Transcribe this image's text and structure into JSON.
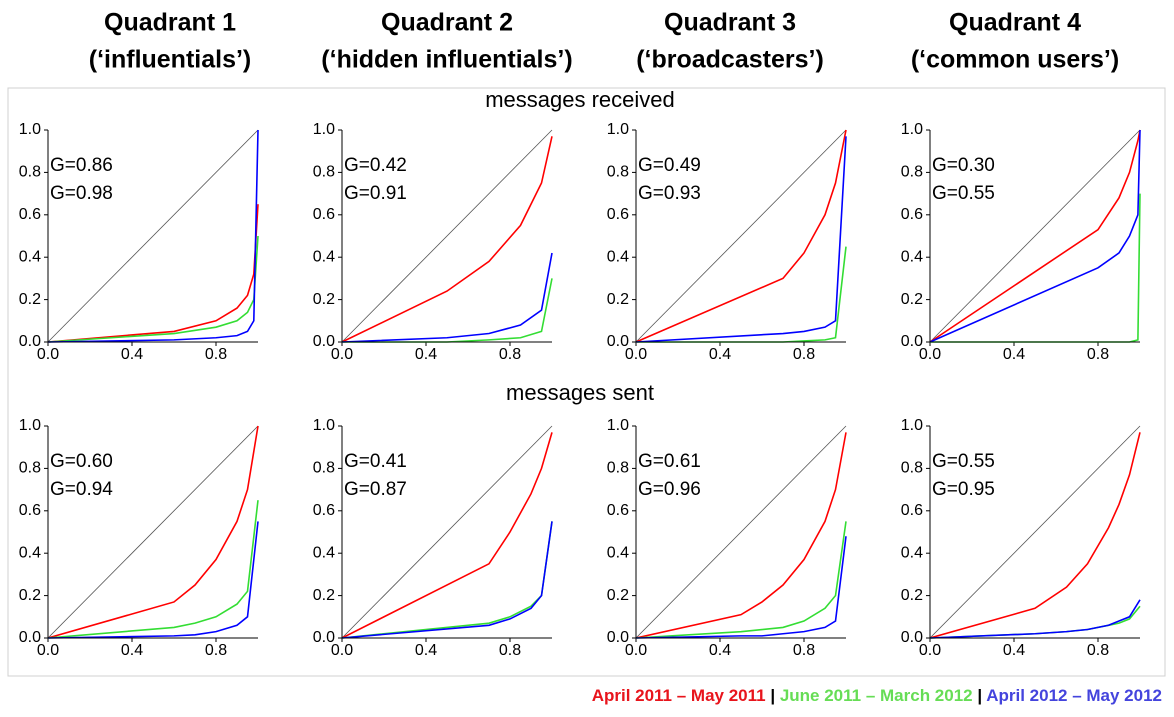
{
  "columns": [
    {
      "title": "Quadrant 1",
      "subtitle": "(‘influentials’)"
    },
    {
      "title": "Quadrant 2",
      "subtitle": "(‘hidden influentials’)"
    },
    {
      "title": "Quadrant 3",
      "subtitle": "(‘broadcasters’)"
    },
    {
      "title": "Quadrant 4",
      "subtitle": "(‘common users’)"
    }
  ],
  "rows": [
    "messages received",
    "messages sent"
  ],
  "legend": [
    {
      "name": "April 2011 – May 2011",
      "color": "#e8141c"
    },
    {
      "name": "June 2011 – March 2012",
      "color": "#66dd55"
    },
    {
      "name": "April 2012 – May 2012",
      "color": "#4444dd"
    }
  ],
  "legend_separator": "|",
  "chart_data": [
    {
      "type": "line",
      "x": [
        0,
        0.6,
        0.8,
        0.9,
        0.95,
        0.98,
        1
      ],
      "series": [
        {
          "color": "#ff0000",
          "values": [
            0,
            0.05,
            0.1,
            0.16,
            0.22,
            0.32,
            0.65
          ]
        },
        {
          "color": "#33dd33",
          "values": [
            0,
            0.04,
            0.07,
            0.1,
            0.14,
            0.2,
            0.5
          ]
        },
        {
          "color": "#0000ff",
          "values": [
            0,
            0.01,
            0.02,
            0.03,
            0.05,
            0.1,
            1
          ]
        }
      ],
      "annotations": [
        {
          "text": "G=0.86",
          "color": "#ff0000"
        },
        {
          "text": "G=0.98",
          "color": "#0000ff"
        }
      ],
      "xlim": [
        0,
        1
      ],
      "ylim": [
        0,
        1
      ],
      "xticks": [
        {
          "value": 0,
          "label": "0.0"
        },
        0.4,
        0.8
      ],
      "yticks": [
        {
          "value": 0,
          "label": "0.0"
        },
        0.2,
        0.4,
        0.6,
        0.8,
        {
          "value": 1,
          "label": "1.0"
        }
      ]
    },
    {
      "type": "line",
      "x": [
        0,
        0.5,
        0.7,
        0.85,
        0.95,
        1
      ],
      "series": [
        {
          "color": "#ff0000",
          "values": [
            0,
            0.24,
            0.38,
            0.55,
            0.75,
            0.97
          ]
        },
        {
          "color": "#33dd33",
          "values": [
            0,
            0,
            0.01,
            0.02,
            0.05,
            0.3
          ]
        },
        {
          "color": "#0000ff",
          "values": [
            0,
            0.02,
            0.04,
            0.08,
            0.15,
            0.42
          ]
        }
      ],
      "annotations": [
        {
          "text": "G=0.42",
          "color": "#ff0000"
        },
        {
          "text": "G=0.91",
          "color": "#0000ff"
        }
      ],
      "xlim": [
        0,
        1
      ],
      "ylim": [
        0,
        1
      ],
      "xticks": [
        {
          "value": 0,
          "label": "0.0"
        },
        0.4,
        0.8
      ],
      "yticks": [
        {
          "value": 0,
          "label": "0.0"
        },
        0.2,
        0.4,
        0.6,
        0.8,
        {
          "value": 1,
          "label": "1.0"
        }
      ]
    },
    {
      "type": "line",
      "x": [
        0,
        0.7,
        0.8,
        0.9,
        0.95,
        1
      ],
      "series": [
        {
          "color": "#ff0000",
          "values": [
            0,
            0.3,
            0.42,
            0.6,
            0.75,
            1
          ]
        },
        {
          "color": "#33dd33",
          "values": [
            0,
            0,
            0.005,
            0.01,
            0.02,
            0.45
          ]
        },
        {
          "color": "#0000ff",
          "values": [
            0,
            0.04,
            0.05,
            0.07,
            0.1,
            0.97
          ]
        }
      ],
      "annotations": [
        {
          "text": "G=0.49",
          "color": "#ff0000"
        },
        {
          "text": "G=0.93",
          "color": "#0000ff"
        }
      ],
      "xlim": [
        0,
        1
      ],
      "ylim": [
        0,
        1
      ],
      "xticks": [
        {
          "value": 0,
          "label": "0.0"
        },
        0.4,
        0.8
      ],
      "yticks": [
        {
          "value": 0,
          "label": "0.0"
        },
        0.2,
        0.4,
        0.6,
        0.8,
        {
          "value": 1,
          "label": "1.0"
        }
      ]
    },
    {
      "type": "line",
      "x": [
        0,
        0.8,
        0.9,
        0.95,
        0.99,
        1
      ],
      "series": [
        {
          "color": "#ff0000",
          "values": [
            0,
            0.53,
            0.68,
            0.8,
            0.95,
            1
          ]
        },
        {
          "color": "#33dd33",
          "values": [
            0,
            0,
            0,
            0,
            0.01,
            0.7
          ]
        },
        {
          "color": "#0000ff",
          "values": [
            0,
            0.35,
            0.42,
            0.5,
            0.6,
            1
          ]
        }
      ],
      "annotations": [
        {
          "text": "G=0.30",
          "color": "#ff0000"
        },
        {
          "text": "G=0.55",
          "color": "#0000ff"
        }
      ],
      "xlim": [
        0,
        1
      ],
      "ylim": [
        0,
        1
      ],
      "xticks": [
        {
          "value": 0,
          "label": "0.0"
        },
        0.4,
        0.8
      ],
      "yticks": [
        {
          "value": 0,
          "label": "0.0"
        },
        0.2,
        0.4,
        0.6,
        0.8,
        {
          "value": 1,
          "label": "1.0"
        }
      ]
    },
    {
      "type": "line",
      "x": [
        0,
        0.6,
        0.7,
        0.8,
        0.9,
        0.95,
        1
      ],
      "series": [
        {
          "color": "#ff0000",
          "values": [
            0,
            0.17,
            0.25,
            0.37,
            0.55,
            0.7,
            1
          ]
        },
        {
          "color": "#33dd33",
          "values": [
            0,
            0.05,
            0.07,
            0.1,
            0.16,
            0.22,
            0.65
          ]
        },
        {
          "color": "#0000ff",
          "values": [
            0,
            0.01,
            0.015,
            0.03,
            0.06,
            0.1,
            0.55
          ]
        }
      ],
      "annotations": [
        {
          "text": "G=0.60",
          "color": "#ff0000"
        },
        {
          "text": "G=0.94",
          "color": "#0000ff"
        }
      ],
      "xlim": [
        0,
        1
      ],
      "ylim": [
        0,
        1
      ],
      "xticks": [
        {
          "value": 0,
          "label": "0.0"
        },
        0.4,
        0.8
      ],
      "yticks": [
        {
          "value": 0,
          "label": "0.0"
        },
        0.2,
        0.4,
        0.6,
        0.8,
        {
          "value": 1,
          "label": "1.0"
        }
      ]
    },
    {
      "type": "line",
      "x": [
        0,
        0.7,
        0.8,
        0.9,
        0.95,
        1
      ],
      "series": [
        {
          "color": "#ff0000",
          "values": [
            0,
            0.35,
            0.5,
            0.68,
            0.8,
            0.97
          ]
        },
        {
          "color": "#33dd33",
          "values": [
            0,
            0.07,
            0.1,
            0.15,
            0.2,
            0.55
          ]
        },
        {
          "color": "#0000ff",
          "values": [
            0,
            0.06,
            0.09,
            0.14,
            0.2,
            0.55
          ]
        }
      ],
      "annotations": [
        {
          "text": "G=0.41",
          "color": "#ff0000"
        },
        {
          "text": "G=0.87",
          "color": "#0000ff"
        }
      ],
      "xlim": [
        0,
        1
      ],
      "ylim": [
        0,
        1
      ],
      "xticks": [
        {
          "value": 0,
          "label": "0.0"
        },
        0.4,
        0.8
      ],
      "yticks": [
        {
          "value": 0,
          "label": "0.0"
        },
        0.2,
        0.4,
        0.6,
        0.8,
        {
          "value": 1,
          "label": "1.0"
        }
      ]
    },
    {
      "type": "line",
      "x": [
        0,
        0.5,
        0.6,
        0.7,
        0.8,
        0.9,
        0.95,
        1
      ],
      "series": [
        {
          "color": "#ff0000",
          "values": [
            0,
            0.11,
            0.17,
            0.25,
            0.37,
            0.55,
            0.7,
            0.97
          ]
        },
        {
          "color": "#33dd33",
          "values": [
            0,
            0.03,
            0.04,
            0.05,
            0.08,
            0.14,
            0.2,
            0.55
          ]
        },
        {
          "color": "#0000ff",
          "values": [
            0,
            0.01,
            0.01,
            0.02,
            0.03,
            0.05,
            0.08,
            0.48
          ]
        }
      ],
      "annotations": [
        {
          "text": "G=0.61",
          "color": "#ff0000"
        },
        {
          "text": "G=0.96",
          "color": "#0000ff"
        }
      ],
      "xlim": [
        0,
        1
      ],
      "ylim": [
        0,
        1
      ],
      "xticks": [
        {
          "value": 0,
          "label": "0.0"
        },
        0.4,
        0.8
      ],
      "yticks": [
        {
          "value": 0,
          "label": "0.0"
        },
        0.2,
        0.4,
        0.6,
        0.8,
        {
          "value": 1,
          "label": "1.0"
        }
      ]
    },
    {
      "type": "line",
      "x": [
        0,
        0.5,
        0.65,
        0.75,
        0.85,
        0.9,
        0.95,
        1
      ],
      "series": [
        {
          "color": "#ff0000",
          "values": [
            0,
            0.14,
            0.24,
            0.35,
            0.52,
            0.63,
            0.77,
            0.97
          ]
        },
        {
          "color": "#33dd33",
          "values": [
            0,
            0.02,
            0.03,
            0.04,
            0.06,
            0.07,
            0.09,
            0.15
          ]
        },
        {
          "color": "#0000ff",
          "values": [
            0,
            0.02,
            0.03,
            0.04,
            0.06,
            0.08,
            0.1,
            0.18
          ]
        }
      ],
      "annotations": [
        {
          "text": "G=0.55",
          "color": "#ff0000"
        },
        {
          "text": "G=0.95",
          "color": "#0000ff"
        }
      ],
      "xlim": [
        0,
        1
      ],
      "ylim": [
        0,
        1
      ],
      "xticks": [
        {
          "value": 0,
          "label": "0.0"
        },
        0.4,
        0.8
      ],
      "yticks": [
        {
          "value": 0,
          "label": "0.0"
        },
        0.2,
        0.4,
        0.6,
        0.8,
        {
          "value": 1,
          "label": "1.0"
        }
      ]
    }
  ]
}
